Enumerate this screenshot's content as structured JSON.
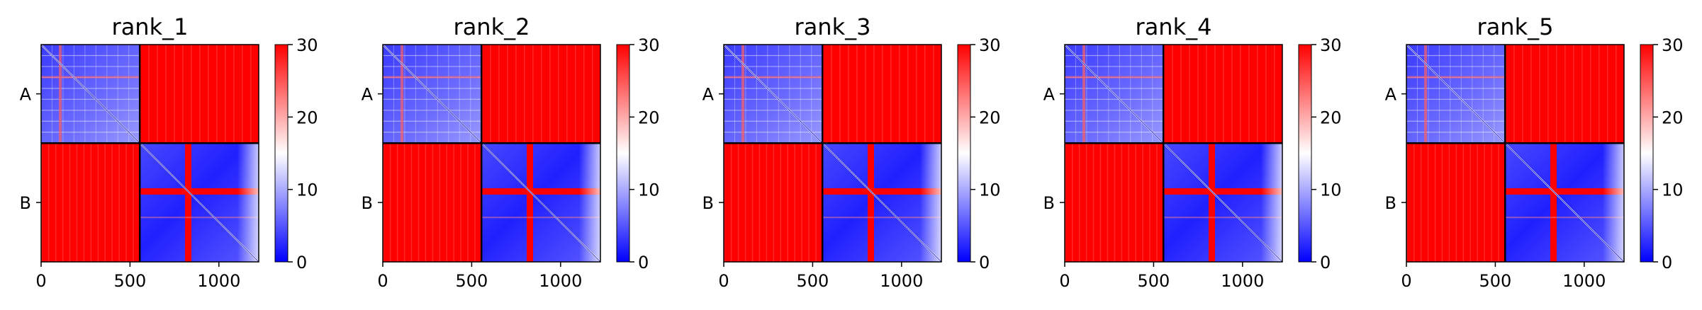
{
  "chart_data": {
    "type": "heatmap",
    "description_units": "residue index",
    "colormap": {
      "name": "bwr",
      "low": "#0000ff",
      "mid": "#ffffff",
      "high": "#ff0000"
    },
    "colorbar": {
      "min": 0,
      "max": 30,
      "ticks": [
        "0",
        "10",
        "20",
        "30"
      ]
    },
    "xlim": [
      0,
      1224
    ],
    "xticks": [
      {
        "value": 0,
        "label": "0"
      },
      {
        "value": 500,
        "label": "500"
      },
      {
        "value": 1000,
        "label": "1000"
      }
    ],
    "chains": [
      {
        "label": "A",
        "start": 0,
        "end": 555
      },
      {
        "label": "B",
        "start": 555,
        "end": 1224
      }
    ],
    "panels": [
      {
        "title": "rank_1"
      },
      {
        "title": "rank_2"
      },
      {
        "title": "rank_3"
      },
      {
        "title": "rank_4"
      },
      {
        "title": "rank_5"
      }
    ]
  }
}
